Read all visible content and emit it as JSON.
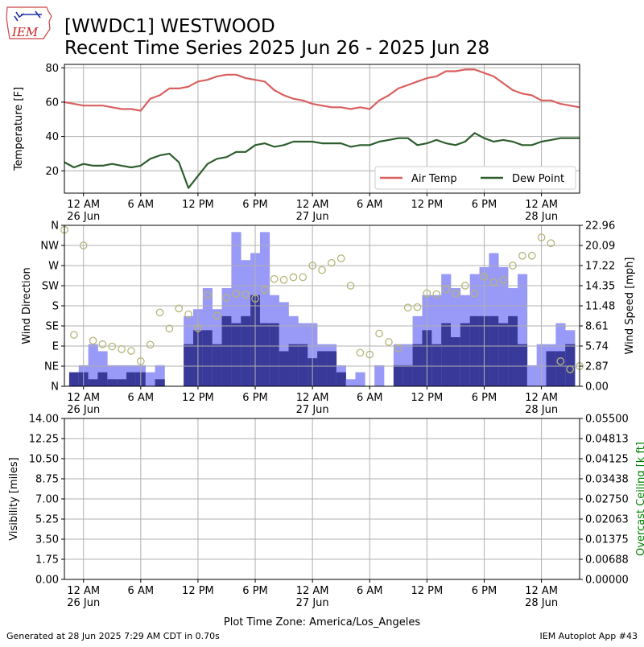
{
  "header": {
    "logo_text": "IEM",
    "title_line1": "[WWDC1] WESTWOOD",
    "title_line2": "Recent Time Series 2025 Jun 26 - 2025 Jun 28"
  },
  "footer": {
    "generated": "Generated at 28 Jun 2025 7:29 AM CDT in 0.70s",
    "app": "IEM Autoplot App #43",
    "timezone_label": "Plot Time Zone: America/Los_Angeles"
  },
  "x_axis": {
    "range_hours": [
      -2,
      52
    ],
    "ticks": [
      {
        "h": 0,
        "line1": "12 AM",
        "line2": "26 Jun"
      },
      {
        "h": 6,
        "line1": "6 AM",
        "line2": ""
      },
      {
        "h": 12,
        "line1": "12 PM",
        "line2": ""
      },
      {
        "h": 18,
        "line1": "6 PM",
        "line2": ""
      },
      {
        "h": 24,
        "line1": "12 AM",
        "line2": "27 Jun"
      },
      {
        "h": 30,
        "line1": "6 AM",
        "line2": ""
      },
      {
        "h": 36,
        "line1": "12 PM",
        "line2": ""
      },
      {
        "h": 42,
        "line1": "6 PM",
        "line2": ""
      },
      {
        "h": 48,
        "line1": "12 AM",
        "line2": "28 Jun"
      }
    ]
  },
  "colors": {
    "air_temp": "#d95f5f",
    "dew_point": "#2e5e2e",
    "gust_bar": "#9999f7",
    "speed_bar": "#393999",
    "direction_marker": "#b5b57a",
    "ceiling_label": "#008000",
    "grid": "#b0b0b0"
  },
  "chart_data": [
    {
      "type": "line",
      "ylabel": "Temperature [F]",
      "ylim": [
        7,
        82
      ],
      "yticks": [
        "20",
        "40",
        "60",
        "80"
      ],
      "legend_position": "lower-right",
      "grid": true,
      "series": [
        {
          "name": "Air Temp",
          "x": [
            -2,
            -1,
            0,
            1,
            2,
            3,
            4,
            5,
            6,
            7,
            8,
            9,
            10,
            11,
            12,
            13,
            14,
            15,
            16,
            17,
            18,
            19,
            20,
            21,
            22,
            23,
            24,
            25,
            26,
            27,
            28,
            29,
            30,
            31,
            32,
            33,
            34,
            35,
            36,
            37,
            38,
            39,
            40,
            41,
            42,
            43,
            44,
            45,
            46,
            47,
            48,
            49,
            50,
            51,
            52
          ],
          "y": [
            60,
            59,
            58,
            58,
            58,
            57,
            56,
            56,
            55,
            62,
            64,
            68,
            68,
            69,
            72,
            73,
            75,
            76,
            76,
            74,
            73,
            72,
            67,
            64,
            62,
            61,
            59,
            58,
            57,
            57,
            56,
            57,
            56,
            61,
            64,
            68,
            70,
            72,
            74,
            75,
            78,
            78,
            79,
            79,
            77,
            75,
            71,
            67,
            65,
            64,
            61,
            61,
            59,
            58,
            57
          ]
        },
        {
          "name": "Dew Point",
          "x": [
            -2,
            -1,
            0,
            1,
            2,
            3,
            4,
            5,
            6,
            7,
            8,
            9,
            10,
            11,
            12,
            13,
            14,
            15,
            16,
            17,
            18,
            19,
            20,
            21,
            22,
            23,
            24,
            25,
            26,
            27,
            28,
            29,
            30,
            31,
            32,
            33,
            34,
            35,
            36,
            37,
            38,
            39,
            40,
            41,
            42,
            43,
            44,
            45,
            46,
            47,
            48,
            49,
            50,
            51,
            52
          ],
          "y": [
            25,
            22,
            24,
            23,
            23,
            24,
            23,
            22,
            23,
            27,
            29,
            30,
            25,
            10,
            17,
            24,
            27,
            28,
            31,
            31,
            35,
            36,
            34,
            35,
            37,
            37,
            37,
            36,
            36,
            36,
            34,
            35,
            35,
            37,
            38,
            39,
            39,
            35,
            36,
            38,
            36,
            35,
            37,
            42,
            39,
            37,
            38,
            37,
            35,
            35,
            37,
            38,
            39,
            39,
            39
          ]
        }
      ]
    },
    {
      "type": "bar",
      "ylabel": "Wind Direction",
      "y2label": "Wind Speed [mph]",
      "direction_ticks": [
        "N",
        "NE",
        "E",
        "SE",
        "S",
        "SW",
        "W",
        "NW",
        "N"
      ],
      "speed_ticks": [
        "0.00",
        "2.87",
        "5.74",
        "8.61",
        "11.48",
        "14.35",
        "17.22",
        "20.09",
        "22.96"
      ],
      "speed_ylim": [
        0,
        22.96
      ],
      "grid": true,
      "bars": [
        {
          "h": -1,
          "speed": 2,
          "gust": 2
        },
        {
          "h": 0,
          "speed": 2,
          "gust": 3
        },
        {
          "h": 1,
          "speed": 1,
          "gust": 6
        },
        {
          "h": 2,
          "speed": 2,
          "gust": 5
        },
        {
          "h": 3,
          "speed": 1,
          "gust": 3
        },
        {
          "h": 4,
          "speed": 1,
          "gust": 3
        },
        {
          "h": 5,
          "speed": 2,
          "gust": 3
        },
        {
          "h": 6,
          "speed": 2,
          "gust": 3
        },
        {
          "h": 7,
          "speed": 0,
          "gust": 2
        },
        {
          "h": 8,
          "speed": 1,
          "gust": 3
        },
        {
          "h": 11,
          "speed": 6,
          "gust": 10
        },
        {
          "h": 12,
          "speed": 8,
          "gust": 11
        },
        {
          "h": 13,
          "speed": 8,
          "gust": 14
        },
        {
          "h": 14,
          "speed": 6,
          "gust": 11
        },
        {
          "h": 15,
          "speed": 10,
          "gust": 14
        },
        {
          "h": 16,
          "speed": 9,
          "gust": 22
        },
        {
          "h": 17,
          "speed": 10,
          "gust": 18
        },
        {
          "h": 18,
          "speed": 13,
          "gust": 19
        },
        {
          "h": 19,
          "speed": 9,
          "gust": 22
        },
        {
          "h": 20,
          "speed": 9,
          "gust": 13
        },
        {
          "h": 21,
          "speed": 5,
          "gust": 12
        },
        {
          "h": 22,
          "speed": 6,
          "gust": 10
        },
        {
          "h": 23,
          "speed": 6,
          "gust": 9
        },
        {
          "h": 24,
          "speed": 4,
          "gust": 9
        },
        {
          "h": 25,
          "speed": 5,
          "gust": 6
        },
        {
          "h": 26,
          "speed": 5,
          "gust": 6
        },
        {
          "h": 27,
          "speed": 2,
          "gust": 3
        },
        {
          "h": 28,
          "speed": 0,
          "gust": 1
        },
        {
          "h": 29,
          "speed": 0,
          "gust": 2
        },
        {
          "h": 31,
          "speed": 0,
          "gust": 3
        },
        {
          "h": 33,
          "speed": 3,
          "gust": 6
        },
        {
          "h": 34,
          "speed": 3,
          "gust": 6
        },
        {
          "h": 35,
          "speed": 6,
          "gust": 10
        },
        {
          "h": 36,
          "speed": 8,
          "gust": 13
        },
        {
          "h": 37,
          "speed": 6,
          "gust": 13
        },
        {
          "h": 38,
          "speed": 9,
          "gust": 16
        },
        {
          "h": 39,
          "speed": 7,
          "gust": 14
        },
        {
          "h": 40,
          "speed": 9,
          "gust": 13
        },
        {
          "h": 41,
          "speed": 10,
          "gust": 16
        },
        {
          "h": 42,
          "speed": 10,
          "gust": 17
        },
        {
          "h": 43,
          "speed": 10,
          "gust": 19
        },
        {
          "h": 44,
          "speed": 9,
          "gust": 17
        },
        {
          "h": 45,
          "speed": 10,
          "gust": 14
        },
        {
          "h": 46,
          "speed": 6,
          "gust": 16
        },
        {
          "h": 47,
          "speed": 0,
          "gust": 3
        },
        {
          "h": 48,
          "speed": 0,
          "gust": 6
        },
        {
          "h": 49,
          "speed": 5,
          "gust": 6
        },
        {
          "h": 50,
          "speed": 5,
          "gust": 9
        },
        {
          "h": 51,
          "speed": 6,
          "gust": 8
        }
      ],
      "direction_points": [
        {
          "h": -2,
          "dir": 350
        },
        {
          "h": -1,
          "dir": 115
        },
        {
          "h": 0,
          "dir": 315
        },
        {
          "h": 1,
          "dir": 102
        },
        {
          "h": 2,
          "dir": 94
        },
        {
          "h": 3,
          "dir": 89
        },
        {
          "h": 4,
          "dir": 83
        },
        {
          "h": 5,
          "dir": 79
        },
        {
          "h": 6,
          "dir": 56
        },
        {
          "h": 7,
          "dir": 93
        },
        {
          "h": 8,
          "dir": 165
        },
        {
          "h": 9,
          "dir": 129
        },
        {
          "h": 10,
          "dir": 174
        },
        {
          "h": 11,
          "dir": 161
        },
        {
          "h": 12,
          "dir": 130
        },
        {
          "h": 13,
          "dir": 204
        },
        {
          "h": 14,
          "dir": 158
        },
        {
          "h": 15,
          "dir": 198
        },
        {
          "h": 16,
          "dir": 207
        },
        {
          "h": 17,
          "dir": 205
        },
        {
          "h": 18,
          "dir": 196
        },
        {
          "h": 19,
          "dir": 216
        },
        {
          "h": 20,
          "dir": 240
        },
        {
          "h": 21,
          "dir": 238
        },
        {
          "h": 22,
          "dir": 244
        },
        {
          "h": 23,
          "dir": 244
        },
        {
          "h": 24,
          "dir": 270
        },
        {
          "h": 25,
          "dir": 260
        },
        {
          "h": 26,
          "dir": 276
        },
        {
          "h": 27,
          "dir": 286
        },
        {
          "h": 28,
          "dir": 225
        },
        {
          "h": 29,
          "dir": 75
        },
        {
          "h": 30,
          "dir": 71
        },
        {
          "h": 31,
          "dir": 118
        },
        {
          "h": 32,
          "dir": 99
        },
        {
          "h": 33,
          "dir": 85
        },
        {
          "h": 34,
          "dir": 176
        },
        {
          "h": 35,
          "dir": 177
        },
        {
          "h": 36,
          "dir": 208
        },
        {
          "h": 37,
          "dir": 206
        },
        {
          "h": 38,
          "dir": 217
        },
        {
          "h": 39,
          "dir": 208
        },
        {
          "h": 40,
          "dir": 225
        },
        {
          "h": 41,
          "dir": 208
        },
        {
          "h": 42,
          "dir": 245
        },
        {
          "h": 43,
          "dir": 233
        },
        {
          "h": 44,
          "dir": 238
        },
        {
          "h": 45,
          "dir": 270
        },
        {
          "h": 46,
          "dir": 292
        },
        {
          "h": 47,
          "dir": 292
        },
        {
          "h": 48,
          "dir": 333
        },
        {
          "h": 49,
          "dir": 320
        },
        {
          "h": 50,
          "dir": 56
        },
        {
          "h": 51,
          "dir": 38
        },
        {
          "h": 52,
          "dir": 45
        }
      ]
    },
    {
      "type": "line",
      "ylabel": "Visibility [miles]",
      "y2label": "Overcast Ceiling [k ft]",
      "visibility_ticks": [
        "0.00",
        "1.75",
        "3.50",
        "5.25",
        "7.00",
        "8.75",
        "10.50",
        "12.25",
        "14.00"
      ],
      "ceiling_ticks": [
        "0.00000",
        "0.00688",
        "0.01375",
        "0.02063",
        "0.02750",
        "0.03438",
        "0.04125",
        "0.04813",
        "0.05500"
      ],
      "ylim": [
        0,
        14
      ],
      "y2lim": [
        0,
        0.055
      ],
      "grid": true,
      "series": []
    }
  ]
}
